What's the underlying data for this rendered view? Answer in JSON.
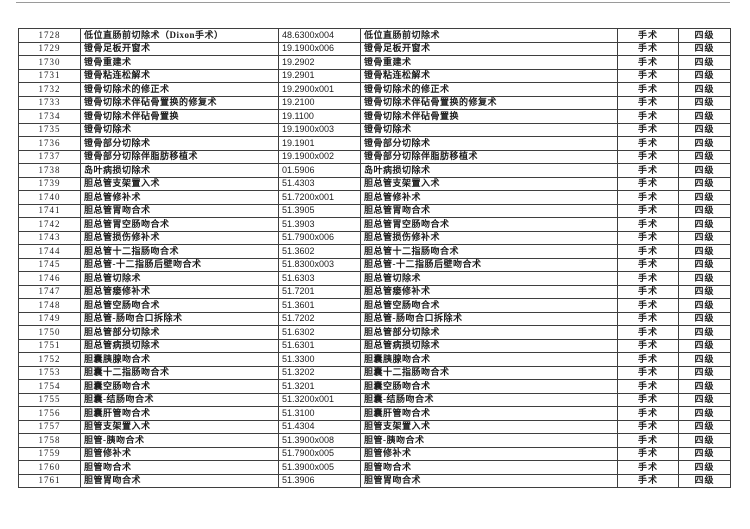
{
  "page": {
    "description_category_value": "手术",
    "description_grade_value": "四级"
  },
  "table": {
    "rows": [
      {
        "no": "1728",
        "name": "低位直肠前切除术（Dixon手术）",
        "code": "48.6300x004",
        "name_right": "低位直肠前切除术",
        "category": "手术",
        "grade": "四级"
      },
      {
        "no": "1729",
        "name": "镫骨足板开窗术",
        "code": "19.1900x006",
        "name_right": "镫骨足板开窗术",
        "category": "手术",
        "grade": "四级"
      },
      {
        "no": "1730",
        "name": "镫骨重建术",
        "code": "19.2902",
        "name_right": "镫骨重建术",
        "category": "手术",
        "grade": "四级"
      },
      {
        "no": "1731",
        "name": "镫骨粘连松解术",
        "code": "19.2901",
        "name_right": "镫骨粘连松解术",
        "category": "手术",
        "grade": "四级"
      },
      {
        "no": "1732",
        "name": "镫骨切除术的修正术",
        "code": "19.2900x001",
        "name_right": "镫骨切除术的修正术",
        "category": "手术",
        "grade": "四级"
      },
      {
        "no": "1733",
        "name": "镫骨切除术伴砧骨置换的修复术",
        "code": "19.2100",
        "name_right": "镫骨切除术伴砧骨置换的修复术",
        "category": "手术",
        "grade": "四级"
      },
      {
        "no": "1734",
        "name": "镫骨切除术伴砧骨置换",
        "code": "19.1100",
        "name_right": "镫骨切除术伴砧骨置换",
        "category": "手术",
        "grade": "四级"
      },
      {
        "no": "1735",
        "name": "镫骨切除术",
        "code": "19.1900x003",
        "name_right": "镫骨切除术",
        "category": "手术",
        "grade": "四级"
      },
      {
        "no": "1736",
        "name": "镫骨部分切除术",
        "code": "19.1901",
        "name_right": "镫骨部分切除术",
        "category": "手术",
        "grade": "四级"
      },
      {
        "no": "1737",
        "name": "镫骨部分切除伴脂肪移植术",
        "code": "19.1900x002",
        "name_right": "镫骨部分切除伴脂肪移植术",
        "category": "手术",
        "grade": "四级"
      },
      {
        "no": "1738",
        "name": "岛叶病损切除术",
        "code": "01.5906",
        "name_right": "岛叶病损切除术",
        "category": "手术",
        "grade": "四级"
      },
      {
        "no": "1739",
        "name": "胆总管支架置入术",
        "code": "51.4303",
        "name_right": "胆总管支架置入术",
        "category": "手术",
        "grade": "四级"
      },
      {
        "no": "1740",
        "name": "胆总管修补术",
        "code": "51.7200x001",
        "name_right": "胆总管修补术",
        "category": "手术",
        "grade": "四级"
      },
      {
        "no": "1741",
        "name": "胆总管胃吻合术",
        "code": "51.3905",
        "name_right": "胆总管胃吻合术",
        "category": "手术",
        "grade": "四级"
      },
      {
        "no": "1742",
        "name": "胆总管胃空肠吻合术",
        "code": "51.3903",
        "name_right": "胆总管胃空肠吻合术",
        "category": "手术",
        "grade": "四级"
      },
      {
        "no": "1743",
        "name": "胆总管损伤修补术",
        "code": "51.7900x006",
        "name_right": "胆总管损伤修补术",
        "category": "手术",
        "grade": "四级"
      },
      {
        "no": "1744",
        "name": "胆总管十二指肠吻合术",
        "code": "51.3602",
        "name_right": "胆总管十二指肠吻合术",
        "category": "手术",
        "grade": "四级"
      },
      {
        "no": "1745",
        "name": "胆总管-十二指肠后壁吻合术",
        "code": "51.8300x003",
        "name_right": "胆总管-十二指肠后壁吻合术",
        "category": "手术",
        "grade": "四级"
      },
      {
        "no": "1746",
        "name": "胆总管切除术",
        "code": "51.6303",
        "name_right": "胆总管切除术",
        "category": "手术",
        "grade": "四级"
      },
      {
        "no": "1747",
        "name": "胆总管瘘修补术",
        "code": "51.7201",
        "name_right": "胆总管瘘修补术",
        "category": "手术",
        "grade": "四级"
      },
      {
        "no": "1748",
        "name": "胆总管空肠吻合术",
        "code": "51.3601",
        "name_right": "胆总管空肠吻合术",
        "category": "手术",
        "grade": "四级"
      },
      {
        "no": "1749",
        "name": "胆总管-肠吻合口拆除术",
        "code": "51.7202",
        "name_right": "胆总管-肠吻合口拆除术",
        "category": "手术",
        "grade": "四级"
      },
      {
        "no": "1750",
        "name": "胆总管部分切除术",
        "code": "51.6302",
        "name_right": "胆总管部分切除术",
        "category": "手术",
        "grade": "四级"
      },
      {
        "no": "1751",
        "name": "胆总管病损切除术",
        "code": "51.6301",
        "name_right": "胆总管病损切除术",
        "category": "手术",
        "grade": "四级"
      },
      {
        "no": "1752",
        "name": "胆囊胰腺吻合术",
        "code": "51.3300",
        "name_right": "胆囊胰腺吻合术",
        "category": "手术",
        "grade": "四级"
      },
      {
        "no": "1753",
        "name": "胆囊十二指肠吻合术",
        "code": "51.3202",
        "name_right": "胆囊十二指肠吻合术",
        "category": "手术",
        "grade": "四级"
      },
      {
        "no": "1754",
        "name": "胆囊空肠吻合术",
        "code": "51.3201",
        "name_right": "胆囊空肠吻合术",
        "category": "手术",
        "grade": "四级"
      },
      {
        "no": "1755",
        "name": "胆囊-结肠吻合术",
        "code": "51.3200x001",
        "name_right": "胆囊-结肠吻合术",
        "category": "手术",
        "grade": "四级"
      },
      {
        "no": "1756",
        "name": "胆囊肝管吻合术",
        "code": "51.3100",
        "name_right": "胆囊肝管吻合术",
        "category": "手术",
        "grade": "四级"
      },
      {
        "no": "1757",
        "name": "胆管支架置入术",
        "code": "51.4304",
        "name_right": "胆管支架置入术",
        "category": "手术",
        "grade": "四级"
      },
      {
        "no": "1758",
        "name": "胆管-胰吻合术",
        "code": "51.3900x008",
        "name_right": "胆管-胰吻合术",
        "category": "手术",
        "grade": "四级"
      },
      {
        "no": "1759",
        "name": "胆管修补术",
        "code": "51.7900x005",
        "name_right": "胆管修补术",
        "category": "手术",
        "grade": "四级"
      },
      {
        "no": "1760",
        "name": "胆管吻合术",
        "code": "51.3900x005",
        "name_right": "胆管吻合术",
        "category": "手术",
        "grade": "四级"
      },
      {
        "no": "1761",
        "name": "胆管胃吻合术",
        "code": "51.3906",
        "name_right": "胆管胃吻合术",
        "category": "手术",
        "grade": "四级"
      }
    ]
  }
}
